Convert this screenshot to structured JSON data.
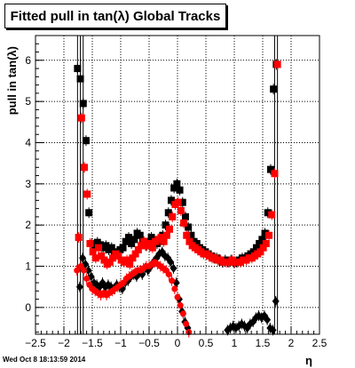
{
  "chart_data": {
    "type": "scatter",
    "title": "Fitted pull in tan(λ) Global Tracks",
    "xlabel": "η",
    "ylabel": "pull in tan(λ)",
    "xlim": [
      -2.5,
      2.5
    ],
    "ylim": [
      -0.65,
      6.6
    ],
    "grid": true,
    "x_ticks": [
      -2.5,
      -2,
      -1.5,
      -1,
      -0.5,
      0,
      0.5,
      1,
      1.5,
      2,
      2.5
    ],
    "x_tick_labels": [
      "−2.5",
      "−2",
      "−1.5",
      "−1",
      "−0.5",
      "0",
      "0.5",
      "1",
      "1.5",
      "2",
      "2.5"
    ],
    "y_ticks": [
      0,
      1,
      2,
      3,
      4,
      5,
      6
    ],
    "y_tick_labels": [
      "0",
      "1",
      "2",
      "3",
      "4",
      "5",
      "6"
    ],
    "series": [
      {
        "color": "#000000",
        "marker": "square",
        "x": [
          -1.76,
          -1.71,
          -1.66,
          -1.61,
          -1.56,
          -1.51,
          -1.46,
          -1.41,
          -1.36,
          -1.31,
          -1.26,
          -1.21,
          -1.16,
          -1.11,
          -1.06,
          -1.01,
          -0.96,
          -0.91,
          -0.86,
          -0.81,
          -0.76,
          -0.71,
          -0.66,
          -0.61,
          -0.56,
          -0.51,
          -0.46,
          -0.41,
          -0.36,
          -0.31,
          -0.26,
          -0.21,
          -0.16,
          -0.11,
          -0.06,
          -0.01,
          0.04,
          0.09,
          0.14,
          0.19,
          0.24,
          0.29,
          0.34,
          0.39,
          0.44,
          0.49,
          0.54,
          0.59,
          0.64,
          0.69,
          0.74,
          0.79,
          0.84,
          0.89,
          0.94,
          0.99,
          1.04,
          1.09,
          1.14,
          1.19,
          1.24,
          1.29,
          1.34,
          1.39,
          1.44,
          1.49,
          1.54,
          1.59,
          1.64,
          1.69,
          1.74
        ],
        "y": [
          5.8,
          5.55,
          4.95,
          4.05,
          2.3,
          1.55,
          1.5,
          1.58,
          1.52,
          1.45,
          1.5,
          1.4,
          1.45,
          1.35,
          1.3,
          1.4,
          1.45,
          1.6,
          1.7,
          1.55,
          1.65,
          1.8,
          1.75,
          1.6,
          1.5,
          1.6,
          1.7,
          1.65,
          1.55,
          1.6,
          1.75,
          2.0,
          2.3,
          2.6,
          2.9,
          3.0,
          2.85,
          2.55,
          2.2,
          1.95,
          1.75,
          1.6,
          1.55,
          1.45,
          1.4,
          1.35,
          1.3,
          1.25,
          1.2,
          1.2,
          1.15,
          1.1,
          1.15,
          1.1,
          1.15,
          1.1,
          1.1,
          1.15,
          1.2,
          1.2,
          1.25,
          1.3,
          1.35,
          1.45,
          1.55,
          1.65,
          1.8,
          2.3,
          3.35,
          5.3,
          5.9
        ]
      },
      {
        "color": "#ff0000",
        "marker": "square",
        "x": [
          -1.74,
          -1.69,
          -1.64,
          -1.59,
          -1.54,
          -1.49,
          -1.44,
          -1.39,
          -1.34,
          -1.29,
          -1.24,
          -1.19,
          -1.14,
          -1.09,
          -1.04,
          -0.99,
          -0.94,
          -0.89,
          -0.84,
          -0.79,
          -0.74,
          -0.69,
          -0.64,
          -0.59,
          -0.54,
          -0.49,
          -0.44,
          -0.39,
          -0.34,
          -0.29,
          -0.24,
          -0.19,
          -0.14,
          -0.09,
          -0.04,
          0.01,
          0.06,
          0.11,
          0.16,
          0.21,
          0.26,
          0.31,
          0.36,
          0.41,
          0.46,
          0.51,
          0.56,
          0.61,
          0.66,
          0.71,
          0.76,
          0.81,
          0.86,
          0.91,
          0.96,
          1.01,
          1.06,
          1.11,
          1.16,
          1.21,
          1.26,
          1.31,
          1.36,
          1.41,
          1.46,
          1.51,
          1.56,
          1.61,
          1.66,
          1.71,
          1.76
        ],
        "y": [
          1.7,
          4.6,
          3.4,
          2.75,
          1.55,
          1.35,
          1.2,
          1.45,
          1.25,
          1.15,
          1.05,
          1.1,
          1.2,
          1.3,
          1.25,
          1.15,
          1.1,
          1.15,
          1.05,
          1.2,
          1.3,
          1.4,
          1.5,
          1.6,
          1.5,
          1.55,
          1.45,
          1.6,
          1.65,
          1.7,
          1.6,
          1.75,
          1.9,
          2.2,
          2.5,
          2.55,
          2.35,
          2.05,
          1.75,
          1.6,
          1.5,
          1.45,
          1.4,
          1.35,
          1.3,
          1.3,
          1.25,
          1.2,
          1.2,
          1.15,
          1.15,
          1.1,
          1.1,
          1.1,
          1.15,
          1.1,
          1.1,
          1.1,
          1.15,
          1.15,
          1.2,
          1.2,
          1.25,
          1.3,
          1.35,
          1.45,
          1.55,
          1.75,
          2.25,
          3.25,
          5.9
        ]
      },
      {
        "color": "#000000",
        "marker": "diamond",
        "x": [
          -1.72,
          -1.67,
          -1.62,
          -1.57,
          -1.52,
          -1.47,
          -1.42,
          -1.37,
          -1.32,
          -1.27,
          -1.22,
          -1.17,
          -1.12,
          -1.07,
          -1.02,
          -0.97,
          -0.92,
          -0.87,
          -0.82,
          -0.77,
          -0.72,
          -0.67,
          -0.62,
          -0.57,
          -0.52,
          -0.47,
          -0.42,
          -0.37,
          -0.32,
          -0.27,
          -0.22,
          -0.17,
          -0.12,
          -0.07,
          -0.02,
          0.03,
          0.08,
          0.13,
          0.18,
          0.88,
          0.93,
          0.98,
          1.03,
          1.08,
          1.13,
          1.18,
          1.23,
          1.28,
          1.33,
          1.38,
          1.43,
          1.48,
          1.53,
          1.58,
          1.63,
          1.68,
          1.73
        ],
        "y": [
          0.5,
          1.2,
          1.05,
          0.9,
          0.75,
          0.6,
          0.55,
          0.5,
          0.6,
          0.5,
          0.55,
          0.5,
          0.45,
          0.55,
          0.5,
          0.45,
          0.6,
          0.65,
          0.75,
          0.8,
          0.75,
          0.85,
          0.8,
          0.95,
          0.9,
          1.0,
          1.1,
          1.2,
          1.3,
          1.35,
          1.25,
          1.2,
          1.1,
          0.95,
          0.6,
          0.2,
          -0.1,
          -0.35,
          -0.5,
          -0.55,
          -0.5,
          -0.45,
          -0.5,
          -0.45,
          -0.4,
          -0.45,
          -0.5,
          -0.4,
          -0.35,
          -0.25,
          -0.2,
          -0.25,
          -0.2,
          -0.3,
          -0.5,
          -0.55,
          0.15
        ]
      },
      {
        "color": "#ff0000",
        "marker": "circle",
        "x": [
          -1.77,
          -1.7,
          -1.65,
          -1.6,
          -1.55,
          -1.5,
          -1.45,
          -1.4,
          -1.35,
          -1.3,
          -1.25,
          -1.2,
          -1.15,
          -1.1,
          -1.05,
          -1.0,
          -0.95,
          -0.9,
          -0.85,
          -0.8,
          -0.75,
          -0.7,
          -0.65,
          -0.6,
          -0.55,
          -0.5,
          -0.45,
          -0.4,
          -0.35,
          -0.3,
          -0.25,
          -0.2,
          -0.15,
          -0.1,
          -0.05,
          0.0,
          0.05,
          0.1,
          0.15,
          0.2
        ],
        "y": [
          0.9,
          1.0,
          0.9,
          0.7,
          0.55,
          0.45,
          0.4,
          0.35,
          0.3,
          0.35,
          0.3,
          0.35,
          0.4,
          0.45,
          0.5,
          0.55,
          0.6,
          0.7,
          0.75,
          0.8,
          0.85,
          0.9,
          0.9,
          0.95,
          1.0,
          1.0,
          1.05,
          1.1,
          1.05,
          1.0,
          0.95,
          0.9,
          0.8,
          0.65,
          0.45,
          0.25,
          0.05,
          -0.15,
          -0.4,
          -0.6
        ]
      }
    ]
  },
  "footer": {
    "timestamp": "Wed Oct  8 18:13:59 2014"
  }
}
